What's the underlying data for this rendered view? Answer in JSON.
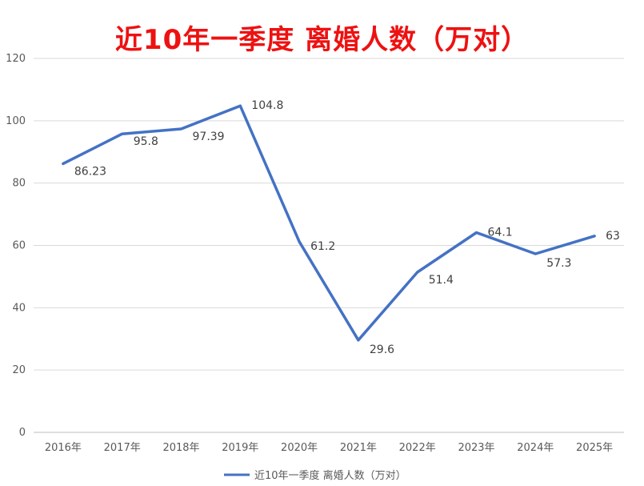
{
  "chart_data": {
    "type": "line",
    "title": "近10年一季度 离婚人数（万对）",
    "categories": [
      "2016年",
      "2017年",
      "2018年",
      "2019年",
      "2020年",
      "2021年",
      "2022年",
      "2023年",
      "2024年",
      "2025年"
    ],
    "series": [
      {
        "name": "近10年一季度 离婚人数（万对）",
        "values": [
          86.23,
          95.8,
          97.39,
          104.8,
          61.2,
          29.6,
          51.4,
          64.1,
          57.3,
          63
        ],
        "labels": [
          "86.23",
          "95.8",
          "97.39",
          "104.8",
          "61.2",
          "29.6",
          "51.4",
          "64.1",
          "57.3",
          "63"
        ],
        "color": "#4472c4"
      }
    ],
    "ylim": [
      0,
      120
    ],
    "yticks": [
      "0",
      "20",
      "40",
      "60",
      "80",
      "100",
      "120"
    ],
    "grid": true,
    "legend_position": "bottom",
    "title_color": "#ee1111"
  }
}
